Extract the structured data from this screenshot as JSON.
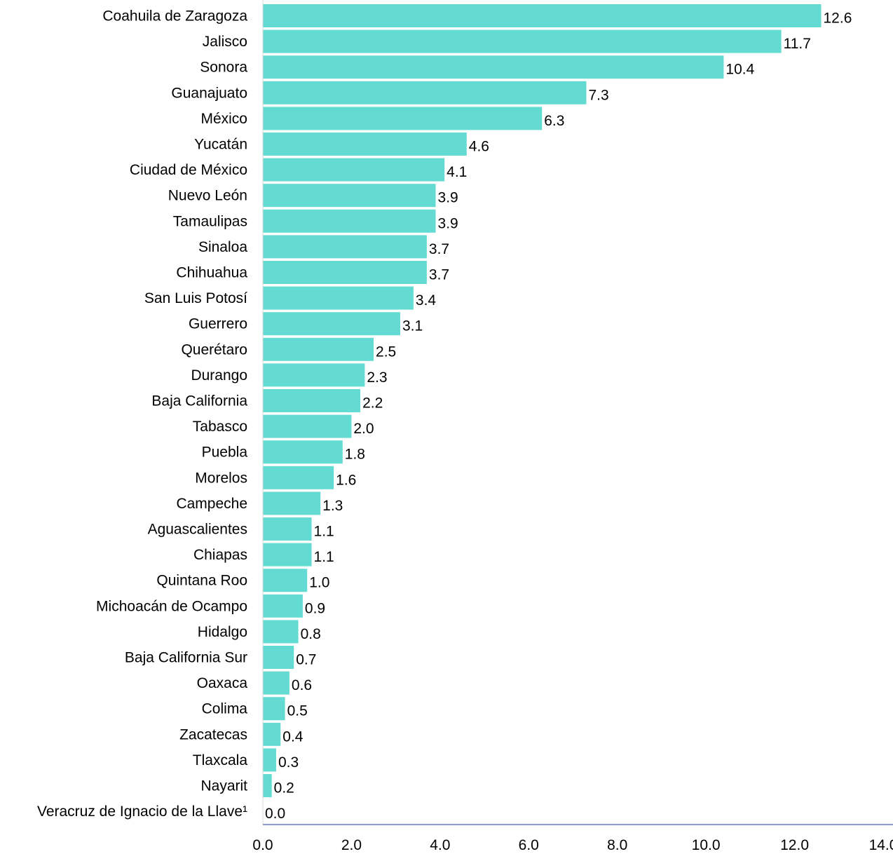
{
  "chart_data": {
    "type": "bar",
    "orientation": "horizontal",
    "title": "",
    "xlabel": "",
    "ylabel": "",
    "xlim": [
      0,
      14
    ],
    "x_ticks": [
      "0.0",
      "2.0",
      "4.0",
      "6.0",
      "8.0",
      "10.0",
      "12.0",
      "14.0"
    ],
    "grid": false,
    "legend": "none",
    "bar_color": "#63dbd3",
    "axis_color": "#4a5fb5",
    "categories": [
      "Coahuila de Zaragoza",
      "Jalisco",
      "Sonora",
      "Guanajuato",
      "México",
      "Yucatán",
      "Ciudad de México",
      "Nuevo León",
      "Tamaulipas",
      "Sinaloa",
      "Chihuahua",
      "San Luis Potosí",
      "Guerrero",
      "Querétaro",
      "Durango",
      "Baja California",
      "Tabasco",
      "Puebla",
      "Morelos",
      "Campeche",
      "Aguascalientes",
      "Chiapas",
      "Quintana Roo",
      "Michoacán de Ocampo",
      "Hidalgo",
      "Baja California Sur",
      "Oaxaca",
      "Colima",
      "Zacatecas",
      "Tlaxcala",
      "Nayarit",
      "Veracruz de Ignacio de la Llave¹"
    ],
    "values": [
      12.6,
      11.7,
      10.4,
      7.3,
      6.3,
      4.6,
      4.1,
      3.9,
      3.9,
      3.7,
      3.7,
      3.4,
      3.1,
      2.5,
      2.3,
      2.2,
      2.0,
      1.8,
      1.6,
      1.3,
      1.1,
      1.1,
      1.0,
      0.9,
      0.8,
      0.7,
      0.6,
      0.5,
      0.4,
      0.3,
      0.2,
      0.0
    ],
    "value_labels": [
      "12.6",
      "11.7",
      "10.4",
      "7.3",
      "6.3",
      "4.6",
      "4.1",
      "3.9",
      "3.9",
      "3.7",
      "3.7",
      "3.4",
      "3.1",
      "2.5",
      "2.3",
      "2.2",
      "2.0",
      "1.8",
      "1.6",
      "1.3",
      "1.1",
      "1.1",
      "1.0",
      "0.9",
      "0.8",
      "0.7",
      "0.6",
      "0.5",
      "0.4",
      "0.3",
      "0.2",
      "0.0"
    ]
  }
}
